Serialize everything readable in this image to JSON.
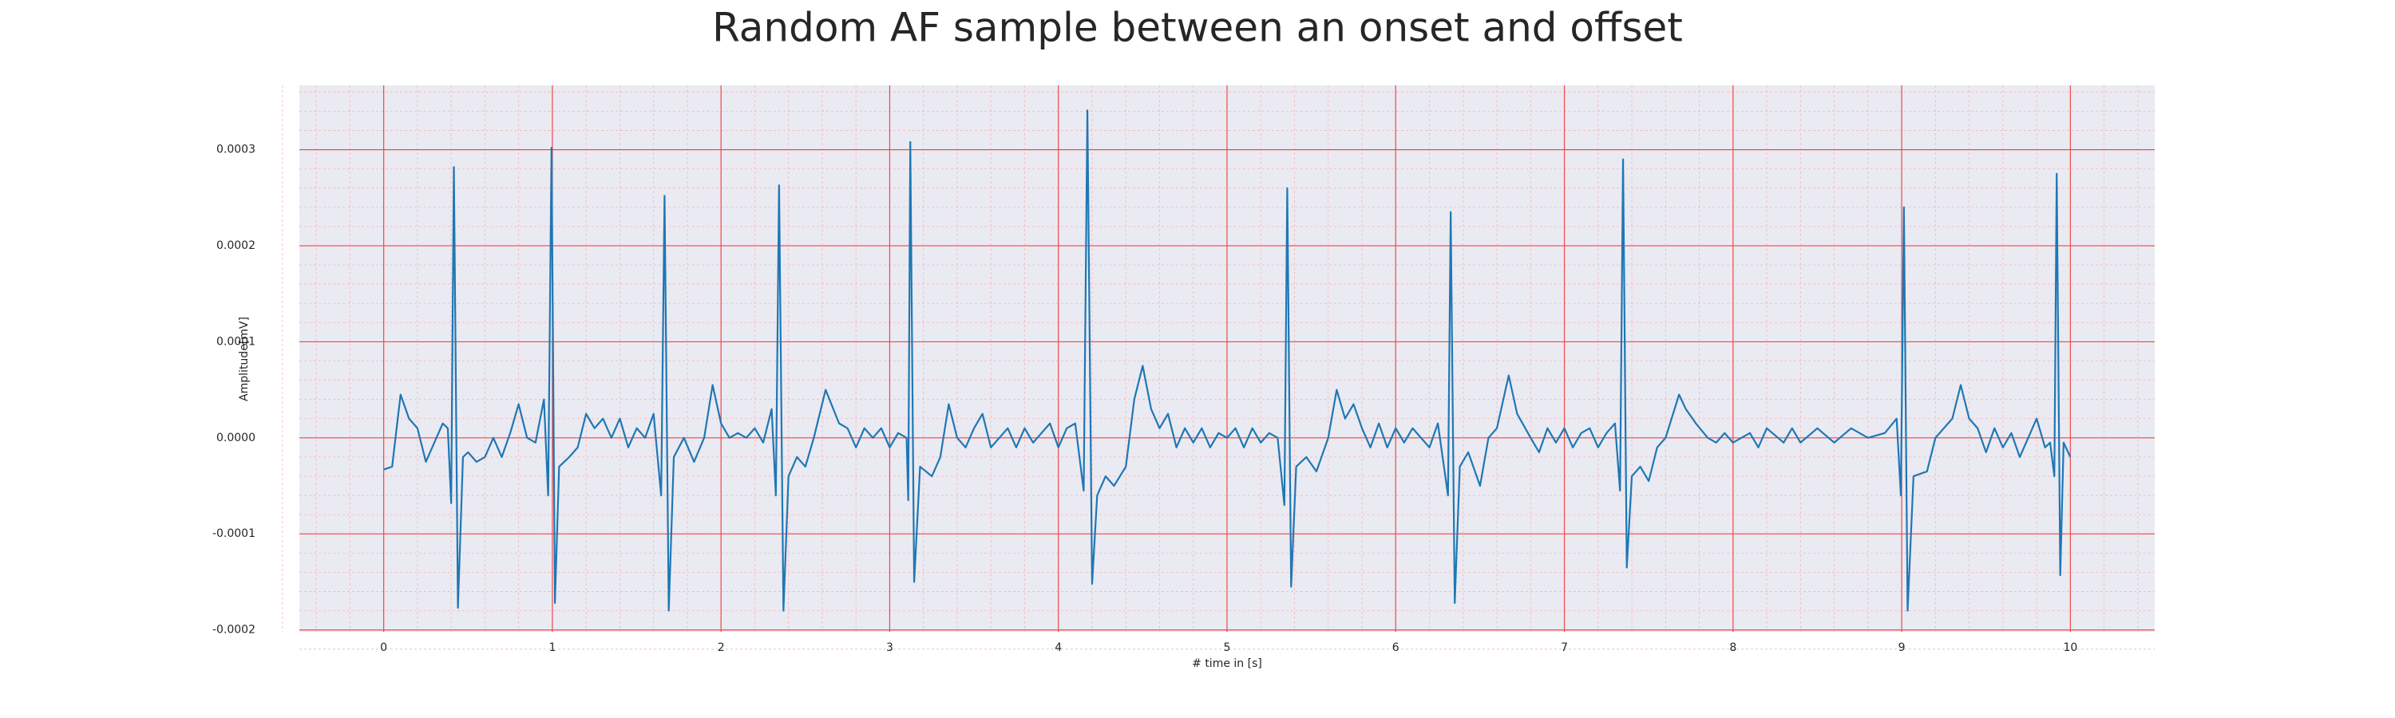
{
  "chart_data": {
    "type": "line",
    "title": "Random AF sample between an onset and offset",
    "xlabel": "# time in [s]",
    "ylabel": "Amplitude[mV]",
    "color": "#1f77b4",
    "grid": true,
    "minor_grid": true,
    "xlim": [
      -0.5,
      10.5
    ],
    "ylim": [
      -0.000202,
      0.000367
    ],
    "xticks": [
      0,
      1,
      2,
      3,
      4,
      5,
      6,
      7,
      8,
      9,
      10
    ],
    "yticks": [
      -0.0002,
      -0.0001,
      {
        "value": 0,
        "label": "0.0000"
      },
      0.0001,
      0.0002,
      0.0003
    ],
    "x": [
      0,
      0.05,
      0.1,
      0.15,
      0.2,
      0.25,
      0.3,
      0.35,
      0.38,
      0.4,
      0.416,
      0.44,
      0.47,
      0.5,
      0.55,
      0.6,
      0.65,
      0.7,
      0.75,
      0.8,
      0.85,
      0.9,
      0.95,
      0.975,
      0.995,
      1.015,
      1.04,
      1.1,
      1.15,
      1.2,
      1.25,
      1.3,
      1.35,
      1.4,
      1.45,
      1.5,
      1.55,
      1.6,
      1.645,
      1.665,
      1.69,
      1.72,
      1.78,
      1.84,
      1.9,
      1.95,
      2.0,
      2.05,
      2.1,
      2.15,
      2.2,
      2.25,
      2.3,
      2.325,
      2.344,
      2.37,
      2.4,
      2.45,
      2.5,
      2.55,
      2.62,
      2.7,
      2.75,
      2.8,
      2.85,
      2.9,
      2.95,
      3.0,
      3.05,
      3.1,
      3.11,
      3.122,
      3.145,
      3.18,
      3.25,
      3.3,
      3.35,
      3.4,
      3.45,
      3.5,
      3.55,
      3.6,
      3.65,
      3.7,
      3.75,
      3.8,
      3.85,
      3.9,
      3.95,
      4.0,
      4.05,
      4.1,
      4.15,
      4.172,
      4.2,
      4.23,
      4.28,
      4.33,
      4.4,
      4.45,
      4.5,
      4.55,
      4.6,
      4.65,
      4.7,
      4.75,
      4.8,
      4.85,
      4.9,
      4.95,
      5.0,
      5.05,
      5.1,
      5.15,
      5.2,
      5.25,
      5.3,
      5.34,
      5.357,
      5.38,
      5.41,
      5.47,
      5.53,
      5.6,
      5.65,
      5.7,
      5.75,
      5.8,
      5.85,
      5.9,
      5.95,
      6.0,
      6.05,
      6.1,
      6.15,
      6.2,
      6.25,
      6.31,
      6.326,
      6.35,
      6.38,
      6.43,
      6.5,
      6.55,
      6.6,
      6.67,
      6.72,
      6.8,
      6.85,
      6.9,
      6.95,
      7.0,
      7.05,
      7.1,
      7.15,
      7.2,
      7.25,
      7.3,
      7.33,
      7.348,
      7.37,
      7.4,
      7.45,
      7.5,
      7.55,
      7.6,
      7.68,
      7.72,
      7.78,
      7.85,
      7.9,
      7.95,
      8.0,
      8.1,
      8.15,
      8.2,
      8.3,
      8.35,
      8.4,
      8.5,
      8.6,
      8.7,
      8.8,
      8.9,
      8.97,
      8.995,
      9.013,
      9.035,
      9.07,
      9.15,
      9.2,
      9.3,
      9.35,
      9.4,
      9.45,
      9.5,
      9.55,
      9.6,
      9.65,
      9.7,
      9.75,
      9.8,
      9.85,
      9.88,
      9.905,
      9.919,
      9.94,
      9.96,
      10.0
    ],
    "values": [
      -3.3e-05,
      -3e-05,
      4.5e-05,
      2e-05,
      1e-05,
      -2.5e-05,
      -5e-06,
      1.5e-05,
      1e-05,
      -6.8e-05,
      0.000282,
      -0.000177,
      -2e-05,
      -1.5e-05,
      -2.5e-05,
      -2e-05,
      0,
      -2e-05,
      5e-06,
      3.5e-05,
      0,
      -5e-06,
      4e-05,
      -6e-05,
      0.000302,
      -0.000172,
      -3e-05,
      -2e-05,
      -1e-05,
      2.5e-05,
      1e-05,
      2e-05,
      0,
      2e-05,
      -1e-05,
      1e-05,
      0,
      2.5e-05,
      -6e-05,
      0.000252,
      -0.00018,
      -2e-05,
      0,
      -2.5e-05,
      0,
      5.5e-05,
      1.5e-05,
      0,
      5e-06,
      0,
      1e-05,
      -5e-06,
      3e-05,
      -6e-05,
      0.000263,
      -0.00018,
      -4e-05,
      -2e-05,
      -3e-05,
      0,
      5e-05,
      1.5e-05,
      1e-05,
      -1e-05,
      1e-05,
      0,
      1e-05,
      -1e-05,
      5e-06,
      0,
      -6.5e-05,
      0.000308,
      -0.00015,
      -3e-05,
      -4e-05,
      -2e-05,
      3.5e-05,
      0,
      -1e-05,
      1e-05,
      2.5e-05,
      -1e-05,
      0,
      1e-05,
      -1e-05,
      1e-05,
      -5e-06,
      5e-06,
      1.5e-05,
      -1e-05,
      1e-05,
      1.5e-05,
      -5.5e-05,
      0.000341,
      -0.000152,
      -6e-05,
      -4e-05,
      -5e-05,
      -3e-05,
      4e-05,
      7.5e-05,
      3e-05,
      1e-05,
      2.5e-05,
      -1e-05,
      1e-05,
      -5e-06,
      1e-05,
      -1e-05,
      5e-06,
      0,
      1e-05,
      -1e-05,
      1e-05,
      -5e-06,
      5e-06,
      0,
      -7e-05,
      0.00026,
      -0.000155,
      -3e-05,
      -2e-05,
      -3.5e-05,
      0,
      5e-05,
      2e-05,
      3.5e-05,
      1e-05,
      -1e-05,
      1.5e-05,
      -1e-05,
      1e-05,
      -5e-06,
      1e-05,
      0,
      -1e-05,
      1.5e-05,
      -6e-05,
      0.000235,
      -0.000172,
      -3e-05,
      -1.5e-05,
      -5e-05,
      0,
      1e-05,
      6.5e-05,
      2.5e-05,
      0,
      -1.5e-05,
      1e-05,
      -5e-06,
      1e-05,
      -1e-05,
      5e-06,
      1e-05,
      -1e-05,
      5e-06,
      1.5e-05,
      -5.5e-05,
      0.00029,
      -0.000135,
      -4e-05,
      -3e-05,
      -4.5e-05,
      -1e-05,
      0,
      4.5e-05,
      3e-05,
      1.5e-05,
      0,
      -5e-06,
      5e-06,
      -5e-06,
      5e-06,
      -1e-05,
      1e-05,
      -5e-06,
      1e-05,
      -5e-06,
      1e-05,
      -5e-06,
      1e-05,
      0,
      5e-06,
      2e-05,
      -6e-05,
      0.00024,
      -0.00018,
      -4e-05,
      -3.5e-05,
      0,
      2e-05,
      5.5e-05,
      2e-05,
      1e-05,
      -1.5e-05,
      1e-05,
      -1e-05,
      5e-06,
      -2e-05,
      0,
      2e-05,
      -1e-05,
      -5e-06,
      -4e-05,
      0.000275,
      -0.000143,
      -5e-06,
      -2e-05
    ]
  }
}
